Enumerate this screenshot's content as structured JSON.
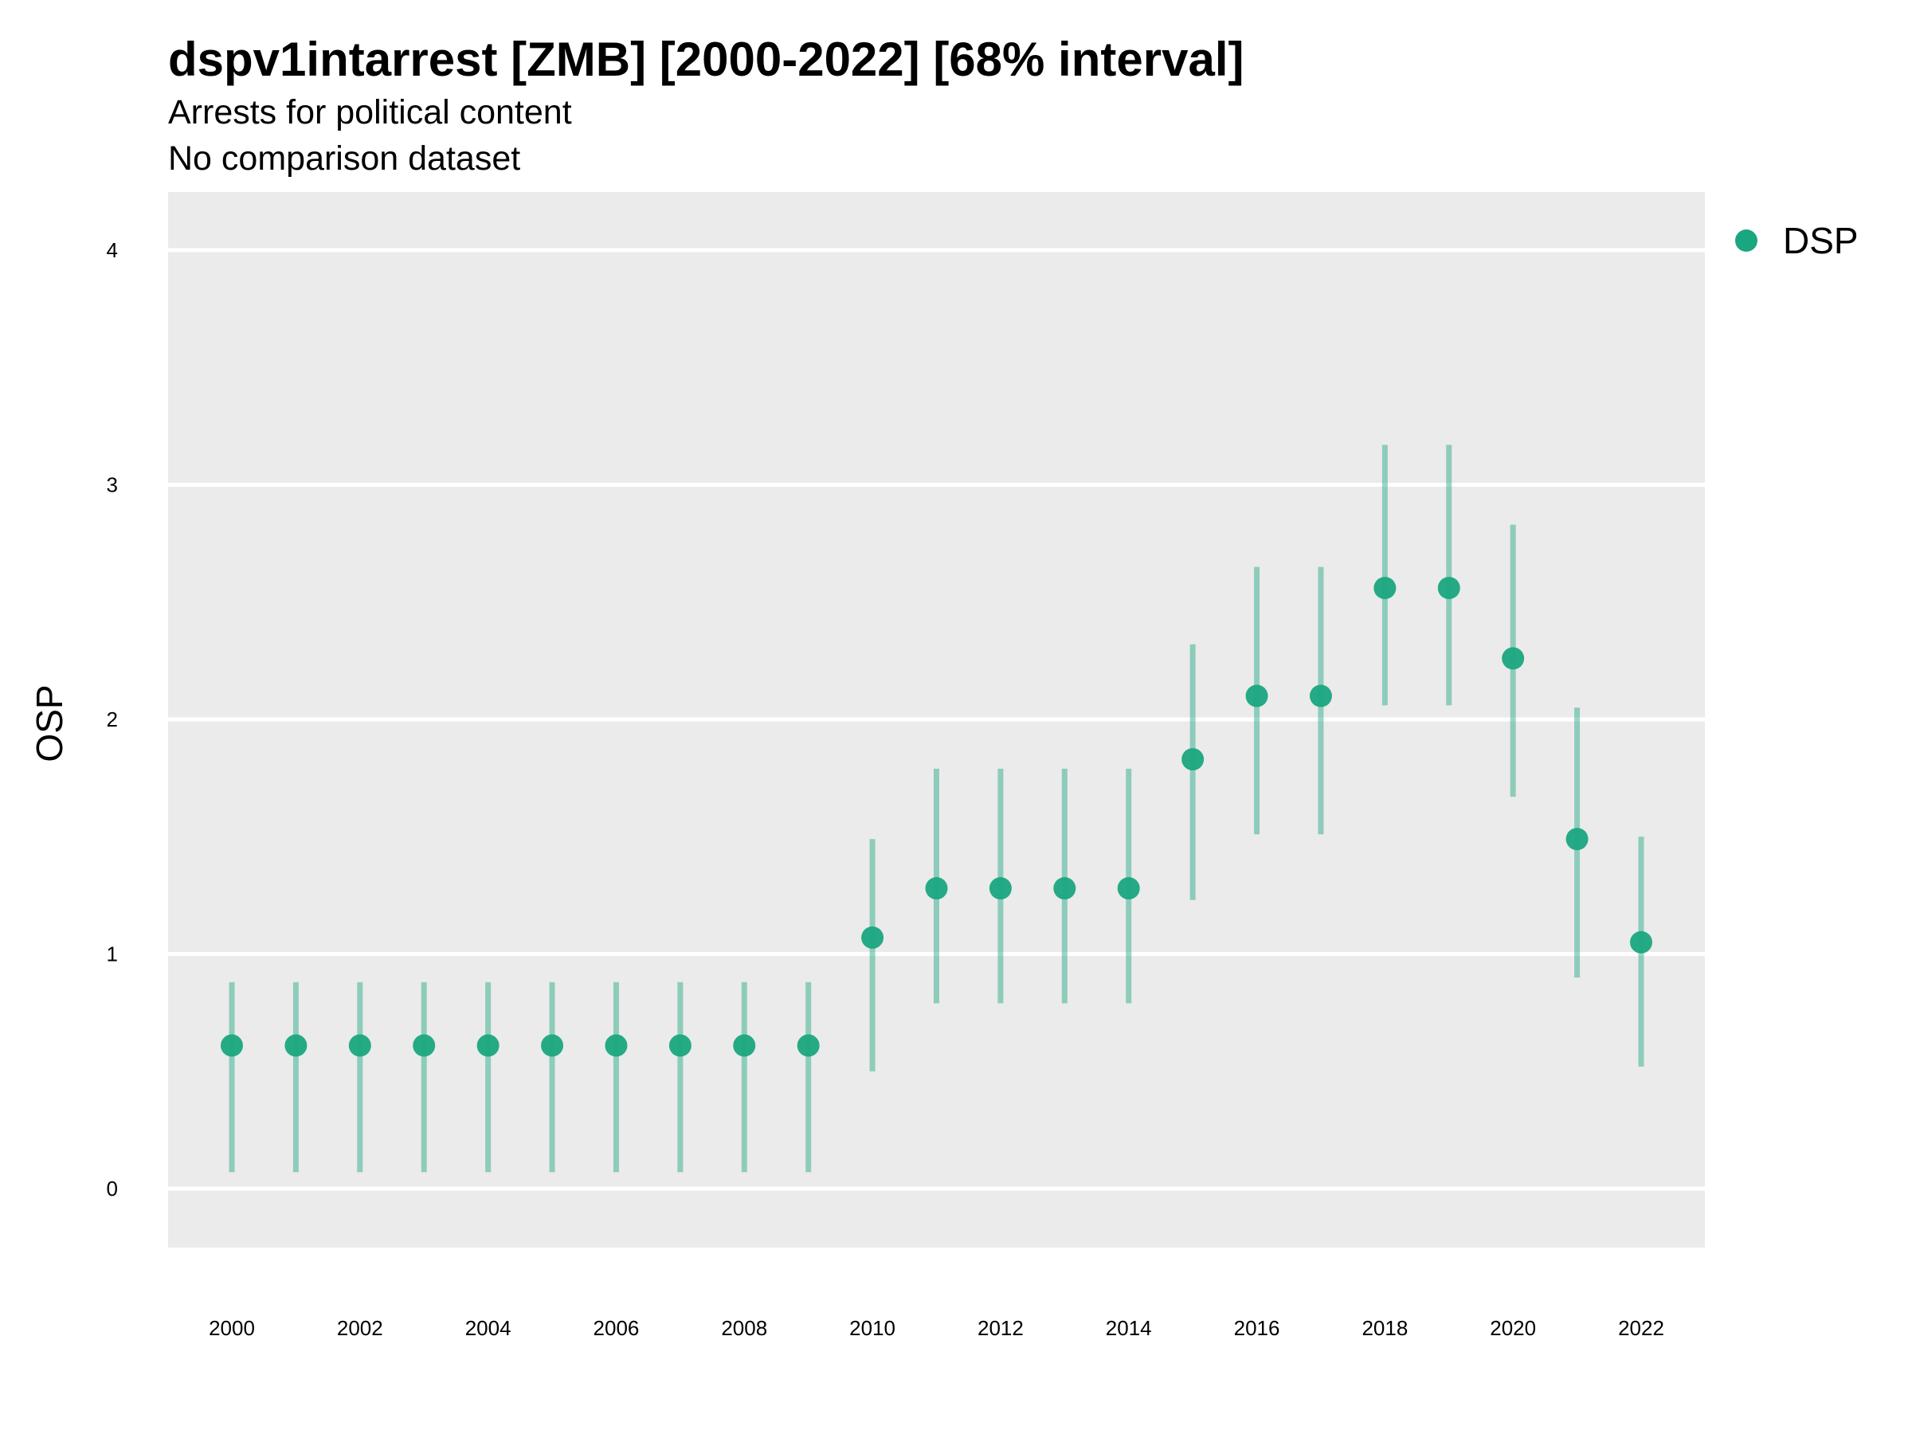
{
  "chart_data": {
    "type": "scatter",
    "title": "dspv1intarrest [ZMB] [2000-2022] [68% interval]",
    "subtitle": "Arrests for political content",
    "subtitle2": "No comparison dataset",
    "xlabel": "",
    "ylabel": "OSP",
    "ylim": [
      -0.25,
      4.25
    ],
    "xlim": [
      1999,
      2023
    ],
    "yticks": [
      0,
      1,
      2,
      3,
      4
    ],
    "xticks": [
      2000,
      2002,
      2004,
      2006,
      2008,
      2010,
      2012,
      2014,
      2016,
      2018,
      2020,
      2022
    ],
    "grid": true,
    "legend": {
      "position": "right-top",
      "entries": [
        "DSP"
      ]
    },
    "color": "#1aa67f",
    "series": [
      {
        "name": "DSP",
        "x": [
          2000,
          2001,
          2002,
          2003,
          2004,
          2005,
          2006,
          2007,
          2008,
          2009,
          2010,
          2011,
          2012,
          2013,
          2014,
          2015,
          2016,
          2017,
          2018,
          2019,
          2020,
          2021,
          2022
        ],
        "y": [
          0.61,
          0.61,
          0.61,
          0.61,
          0.61,
          0.61,
          0.61,
          0.61,
          0.61,
          0.61,
          1.07,
          1.28,
          1.28,
          1.28,
          1.28,
          1.83,
          2.1,
          2.1,
          2.56,
          2.56,
          2.26,
          1.49,
          1.05
        ],
        "lower": [
          0.07,
          0.07,
          0.07,
          0.07,
          0.07,
          0.07,
          0.07,
          0.07,
          0.07,
          0.07,
          0.5,
          0.79,
          0.79,
          0.79,
          0.79,
          1.23,
          1.51,
          1.51,
          2.06,
          2.06,
          1.67,
          0.9,
          0.52
        ],
        "upper": [
          0.88,
          0.88,
          0.88,
          0.88,
          0.88,
          0.88,
          0.88,
          0.88,
          0.88,
          0.88,
          1.49,
          1.79,
          1.79,
          1.79,
          1.79,
          2.32,
          2.65,
          2.65,
          3.17,
          3.17,
          2.83,
          2.05,
          1.5
        ]
      }
    ]
  }
}
